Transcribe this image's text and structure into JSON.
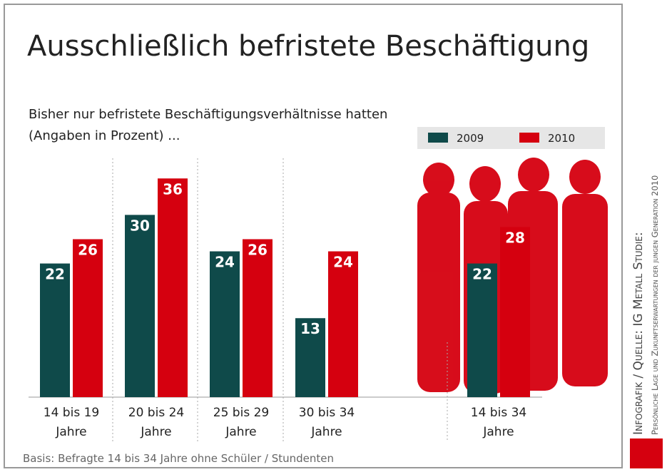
{
  "chart_data": {
    "type": "bar",
    "title": "Ausschließlich befristete Beschäftigung",
    "subtitle": "Bisher nur befristete Beschäftigungsverhältnisse hatten (Angaben in Prozent) ...",
    "categories": [
      "14 bis 19 Jahre",
      "20 bis 24 Jahre",
      "25 bis 29 Jahre",
      "30 bis 34 Jahre",
      "14 bis 34 Jahre"
    ],
    "series": [
      {
        "name": "2009",
        "color": "#0f4a4a",
        "values": [
          22,
          30,
          24,
          13,
          22
        ]
      },
      {
        "name": "2010",
        "color": "#d5000f",
        "values": [
          26,
          36,
          26,
          24,
          28
        ]
      }
    ],
    "footnote": "Basis: Befragte 14 bis 34 Jahre ohne Schüler / Stundenten",
    "source_line1": "Infografik / Quelle: IG Metall Studie:",
    "source_line2": "Persönliche Lage und Zukunftserwartungen der jungen Generation 2010"
  }
}
